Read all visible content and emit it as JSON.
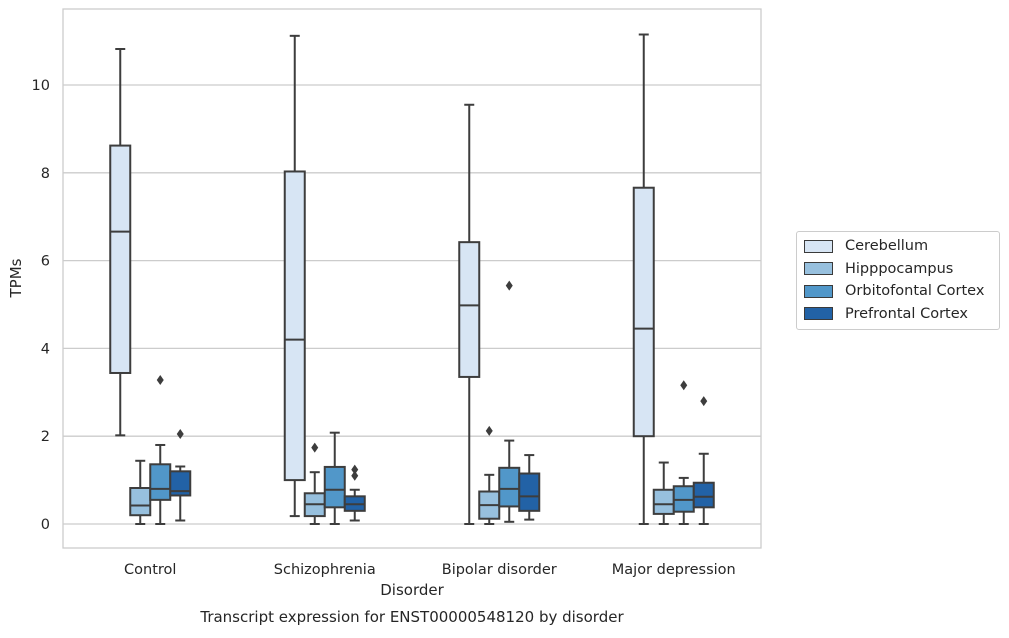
{
  "chart_data": {
    "type": "box",
    "title": "Transcript expression for ENST00000548120 by disorder",
    "xlabel": "Disorder",
    "ylabel": "TPMs",
    "categories": [
      "Control",
      "Schizophrenia",
      "Bipolar disorder",
      "Major depression"
    ],
    "ylim": [
      -0.55,
      11.45
    ],
    "yticks": [
      0,
      2,
      4,
      6,
      8,
      10
    ],
    "grid": "horizontal",
    "legend_position": "right",
    "series": [
      {
        "name": "Cerebellum",
        "color": "#d7e5f4",
        "boxes": [
          {
            "whislo": 2.02,
            "q1": 3.44,
            "med": 6.66,
            "q3": 8.62,
            "whishi": 10.82,
            "fliers": []
          },
          {
            "whislo": 0.18,
            "q1": 1.0,
            "med": 4.2,
            "q3": 8.03,
            "whishi": 11.12,
            "fliers": []
          },
          {
            "whislo": 0.0,
            "q1": 3.35,
            "med": 4.98,
            "q3": 6.42,
            "whishi": 9.55,
            "fliers": []
          },
          {
            "whislo": 0.0,
            "q1": 2.0,
            "med": 4.45,
            "q3": 7.66,
            "whishi": 11.15,
            "fliers": []
          }
        ]
      },
      {
        "name": "Hipppocampus",
        "color": "#97c0de",
        "boxes": [
          {
            "whislo": 0.0,
            "q1": 0.2,
            "med": 0.42,
            "q3": 0.82,
            "whishi": 1.44,
            "fliers": []
          },
          {
            "whislo": 0.0,
            "q1": 0.18,
            "med": 0.45,
            "q3": 0.7,
            "whishi": 1.18,
            "fliers": [
              1.74
            ]
          },
          {
            "whislo": 0.0,
            "q1": 0.12,
            "med": 0.43,
            "q3": 0.74,
            "whishi": 1.12,
            "fliers": [
              2.12
            ]
          },
          {
            "whislo": 0.0,
            "q1": 0.23,
            "med": 0.45,
            "q3": 0.78,
            "whishi": 1.4,
            "fliers": []
          }
        ]
      },
      {
        "name": "Orbitofontal Cortex",
        "color": "#5197c9",
        "boxes": [
          {
            "whislo": 0.0,
            "q1": 0.55,
            "med": 0.8,
            "q3": 1.36,
            "whishi": 1.8,
            "fliers": [
              3.28
            ]
          },
          {
            "whislo": 0.0,
            "q1": 0.38,
            "med": 0.78,
            "q3": 1.3,
            "whishi": 2.08,
            "fliers": []
          },
          {
            "whislo": 0.05,
            "q1": 0.4,
            "med": 0.8,
            "q3": 1.28,
            "whishi": 1.9,
            "fliers": [
              5.43
            ]
          },
          {
            "whislo": 0.0,
            "q1": 0.28,
            "med": 0.55,
            "q3": 0.86,
            "whishi": 1.05,
            "fliers": [
              3.16
            ]
          }
        ]
      },
      {
        "name": "Prefrontal Cortex",
        "color": "#2262a6",
        "boxes": [
          {
            "whislo": 0.08,
            "q1": 0.65,
            "med": 0.75,
            "q3": 1.2,
            "whishi": 1.31,
            "fliers": [
              2.05
            ]
          },
          {
            "whislo": 0.08,
            "q1": 0.3,
            "med": 0.45,
            "q3": 0.63,
            "whishi": 0.78,
            "fliers": [
              1.1,
              1.24
            ]
          },
          {
            "whislo": 0.1,
            "q1": 0.3,
            "med": 0.63,
            "q3": 1.15,
            "whishi": 1.57,
            "fliers": []
          },
          {
            "whislo": 0.0,
            "q1": 0.38,
            "med": 0.62,
            "q3": 0.94,
            "whishi": 1.6,
            "fliers": [
              2.8
            ]
          }
        ]
      }
    ]
  }
}
